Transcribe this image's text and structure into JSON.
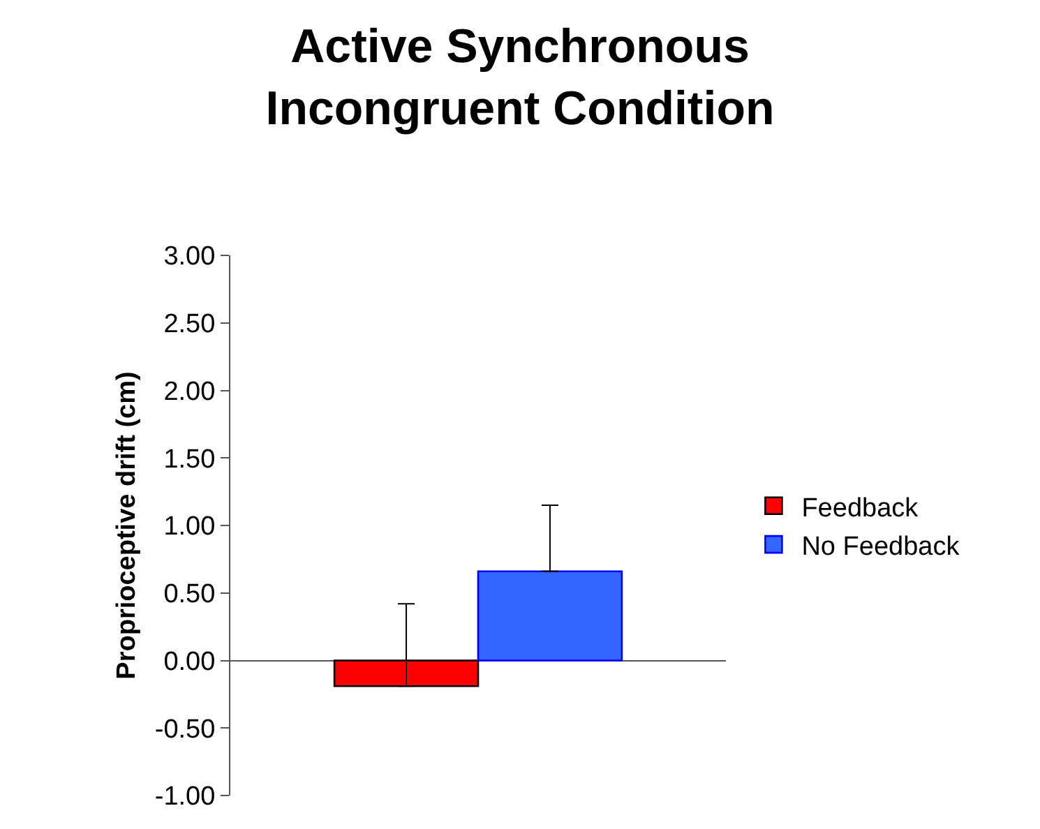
{
  "chart_data": {
    "type": "bar",
    "title": "Active Synchronous\nIncongruent Condition",
    "ylabel": "Proprioceptive drift (cm)",
    "categories": [
      null
    ],
    "series": [
      {
        "name": "Feedback",
        "color": "#ff0000",
        "values": [
          -0.19
        ],
        "errors": [
          [
            -0.19,
            0.42
          ]
        ]
      },
      {
        "name": "No Feedback",
        "color": "#3366ff",
        "values": [
          0.66
        ],
        "errors": [
          [
            0.66,
            1.15
          ]
        ]
      }
    ],
    "ylim": [
      -1,
      3
    ],
    "yticks": [
      {
        "value": -1,
        "label": "-1.00"
      },
      {
        "value": -0.5,
        "label": "-0.50"
      },
      {
        "value": 0,
        "label": "0.00"
      },
      {
        "value": 0.5,
        "label": "0.50"
      },
      {
        "value": 1,
        "label": "1.00"
      },
      {
        "value": 1.5,
        "label": "1.50"
      },
      {
        "value": 2,
        "label": "2.00"
      },
      {
        "value": 2.5,
        "label": "2.50"
      },
      {
        "value": 3,
        "label": "3.00"
      }
    ],
    "legend": "right",
    "tick_labels": "y"
  }
}
